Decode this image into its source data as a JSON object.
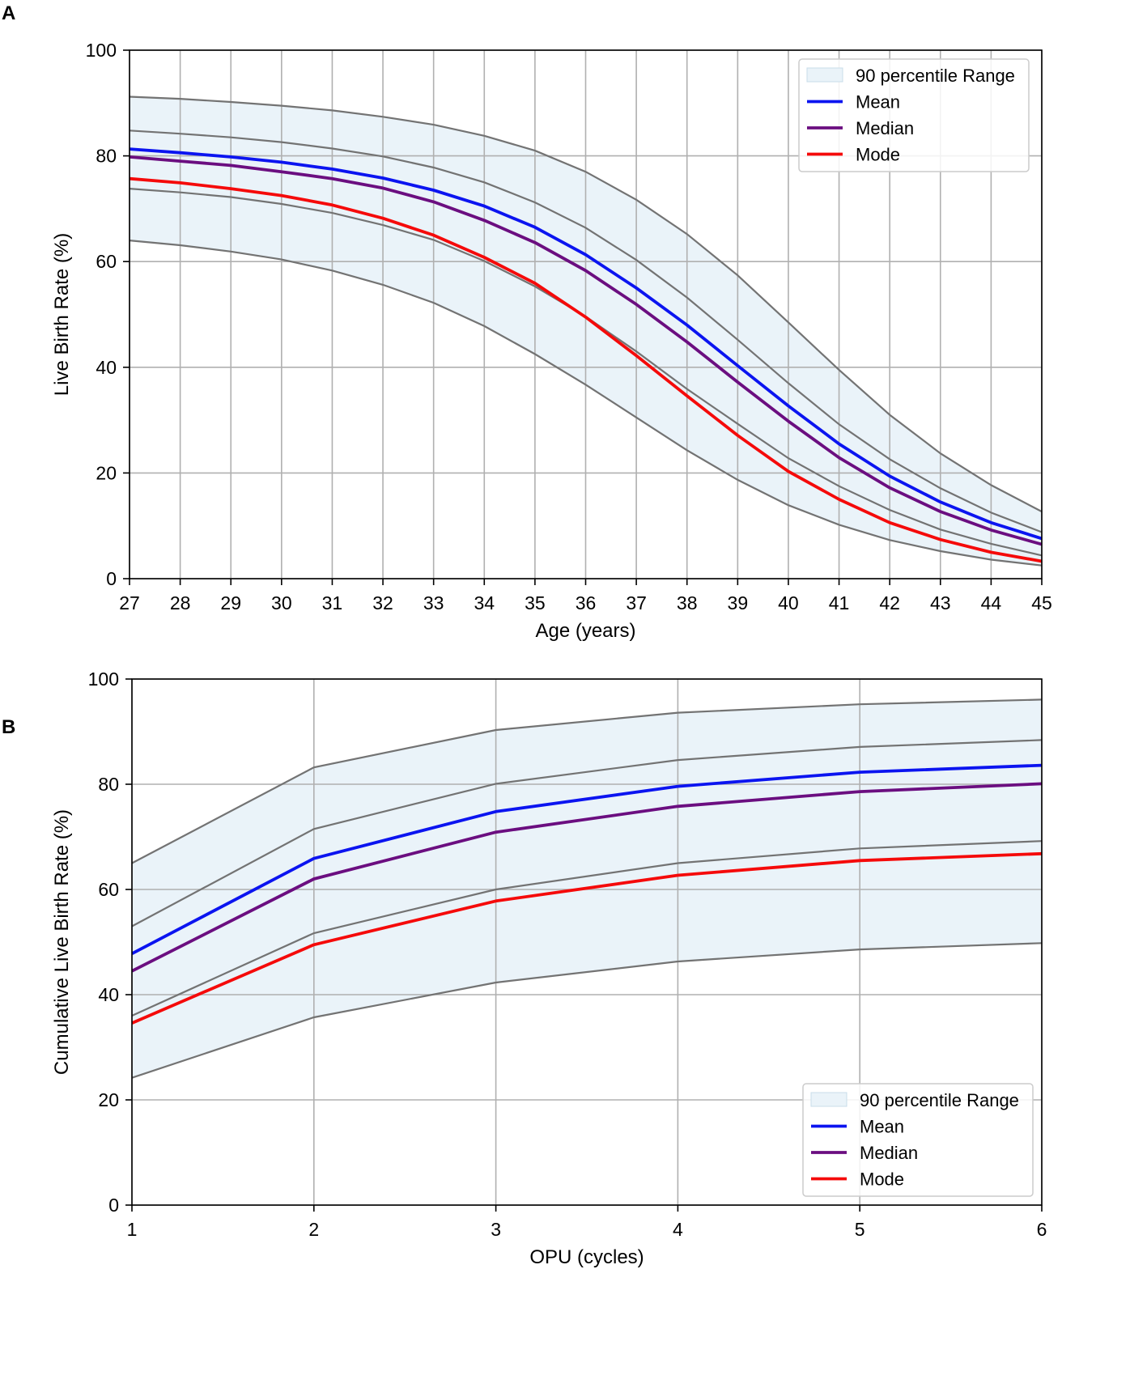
{
  "chart_data": [
    {
      "panel": "A",
      "type": "line",
      "title": "",
      "xlabel": "Age (years)",
      "ylabel": "Live Birth Rate (%)",
      "xlim": [
        27,
        45
      ],
      "ylim": [
        0,
        100
      ],
      "xticks": [
        27,
        28,
        29,
        30,
        31,
        32,
        33,
        34,
        35,
        36,
        37,
        38,
        39,
        40,
        41,
        42,
        43,
        44,
        45
      ],
      "yticks": [
        0,
        20,
        40,
        60,
        80,
        100
      ],
      "grid": true,
      "legend_position": "top-right",
      "x": [
        27,
        28,
        29,
        30,
        31,
        32,
        33,
        34,
        35,
        36,
        37,
        38,
        39,
        40,
        41,
        42,
        43,
        44,
        45
      ],
      "band": {
        "name": "90 percentile Range",
        "color": "#eaf3f9",
        "upper": [
          91.2,
          90.8,
          90.2,
          89.5,
          88.6,
          87.4,
          85.9,
          83.8,
          81.0,
          77.0,
          71.7,
          65.2,
          57.4,
          48.5,
          39.5,
          31.0,
          23.7,
          17.7,
          12.7
        ],
        "lower": [
          64.0,
          63.1,
          61.9,
          60.4,
          58.3,
          55.6,
          52.2,
          47.8,
          42.5,
          36.7,
          30.5,
          24.3,
          18.7,
          13.9,
          10.2,
          7.3,
          5.2,
          3.6,
          2.5
        ]
      },
      "boundaries": [
        {
          "name": "upper-inner",
          "values": [
            84.8,
            84.2,
            83.5,
            82.6,
            81.4,
            79.9,
            77.8,
            75.0,
            71.2,
            66.4,
            60.3,
            53.2,
            45.2,
            37.0,
            29.2,
            22.6,
            17.1,
            12.5,
            8.8
          ]
        },
        {
          "name": "lower-inner",
          "values": [
            73.8,
            73.1,
            72.2,
            70.9,
            69.2,
            66.9,
            64.1,
            60.1,
            55.3,
            49.6,
            43.0,
            35.9,
            29.3,
            22.8,
            17.5,
            13.0,
            9.3,
            6.6,
            4.4
          ]
        }
      ],
      "boundary_color": "#737373",
      "series": [
        {
          "name": "Mean",
          "color": "#0b14f0",
          "values": [
            81.3,
            80.6,
            79.8,
            78.8,
            77.5,
            75.8,
            73.5,
            70.5,
            66.5,
            61.3,
            55.0,
            48.0,
            40.3,
            32.7,
            25.5,
            19.4,
            14.5,
            10.6,
            7.6
          ]
        },
        {
          "name": "Median",
          "color": "#6b0e80",
          "values": [
            79.8,
            79.0,
            78.2,
            77.0,
            75.7,
            73.9,
            71.3,
            67.8,
            63.6,
            58.3,
            51.9,
            44.8,
            37.2,
            29.8,
            22.9,
            17.2,
            12.7,
            9.2,
            6.5
          ]
        },
        {
          "name": "Mode",
          "color": "#f50a0a",
          "values": [
            75.7,
            74.9,
            73.8,
            72.5,
            70.7,
            68.2,
            65.0,
            60.8,
            55.9,
            49.5,
            42.2,
            34.6,
            27.1,
            20.3,
            15.0,
            10.6,
            7.4,
            5.0,
            3.3
          ]
        }
      ]
    },
    {
      "panel": "B",
      "type": "line",
      "title": "",
      "xlabel": "OPU (cycles)",
      "ylabel": "Cumulative Live Birth Rate (%)",
      "xlim": [
        1,
        6
      ],
      "ylim": [
        0,
        100
      ],
      "xticks": [
        1,
        2,
        3,
        4,
        5,
        6
      ],
      "yticks": [
        0,
        20,
        40,
        60,
        80,
        100
      ],
      "grid": true,
      "legend_position": "bottom-right",
      "x": [
        1,
        2,
        3,
        4,
        5,
        6
      ],
      "band": {
        "name": "90 percentile Range",
        "color": "#eaf3f9",
        "upper": [
          65.0,
          83.2,
          90.3,
          93.6,
          95.2,
          96.1
        ],
        "lower": [
          24.2,
          35.7,
          42.3,
          46.3,
          48.6,
          49.8
        ]
      },
      "boundaries": [
        {
          "name": "upper-inner",
          "values": [
            53.0,
            71.5,
            80.1,
            84.6,
            87.1,
            88.4
          ]
        },
        {
          "name": "lower-inner",
          "values": [
            36.0,
            51.7,
            60.0,
            65.0,
            67.8,
            69.2
          ]
        }
      ],
      "boundary_color": "#737373",
      "series": [
        {
          "name": "Mean",
          "color": "#0b14f0",
          "values": [
            47.8,
            65.9,
            74.8,
            79.6,
            82.3,
            83.6
          ]
        },
        {
          "name": "Median",
          "color": "#6b0e80",
          "values": [
            44.5,
            62.0,
            70.9,
            75.8,
            78.6,
            80.1
          ]
        },
        {
          "name": "Mode",
          "color": "#f50a0a",
          "values": [
            34.6,
            49.5,
            57.8,
            62.7,
            65.5,
            66.8
          ]
        }
      ]
    }
  ]
}
